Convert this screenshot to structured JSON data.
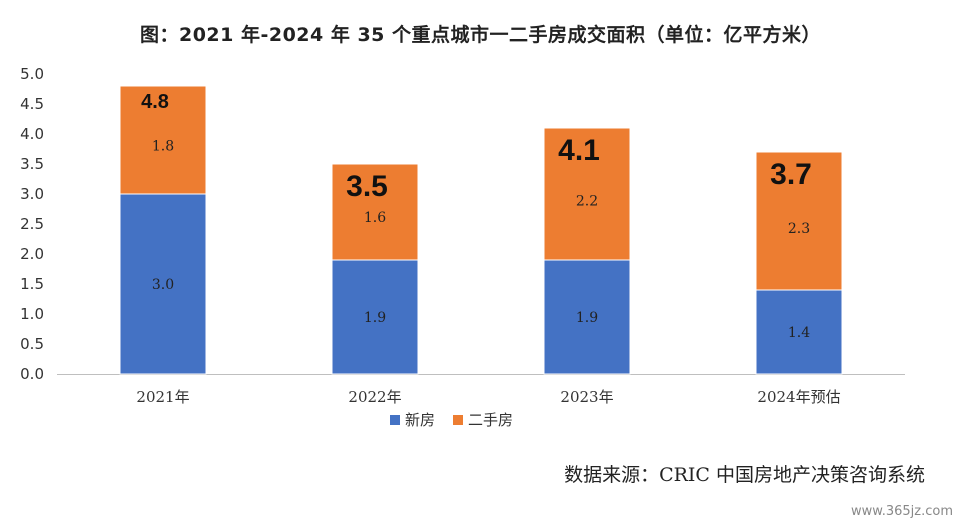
{
  "title": "图：2021 年-2024 年 35 个重点城市一二手房成交面积（单位：亿平方米）",
  "source": "数据来源：CRIC 中国房地产决策咨询系统",
  "watermark": "www.365jz.com",
  "chart_data": {
    "type": "bar",
    "stacked": true,
    "categories": [
      "2021年",
      "2022年",
      "2023年",
      "2024年预估"
    ],
    "series": [
      {
        "name": "新房",
        "color": "#4472C4",
        "values": [
          3.0,
          1.9,
          1.9,
          1.4
        ],
        "labels": [
          "3.0",
          "1.9",
          "1.9",
          "1.4"
        ]
      },
      {
        "name": "二手房",
        "color": "#ED7D31",
        "values": [
          1.8,
          1.6,
          2.2,
          2.3
        ],
        "labels": [
          "1.8",
          "1.6",
          "2.2",
          "2.3"
        ]
      }
    ],
    "totals": [
      "4.8",
      "3.5",
      "4.1",
      "3.7"
    ],
    "ylim": [
      0,
      5
    ],
    "yticks": [
      "0.0",
      "0.5",
      "1.0",
      "1.5",
      "2.0",
      "2.5",
      "3.0",
      "3.5",
      "4.0",
      "4.5",
      "5.0"
    ],
    "grid": false,
    "legend": "bottom"
  }
}
